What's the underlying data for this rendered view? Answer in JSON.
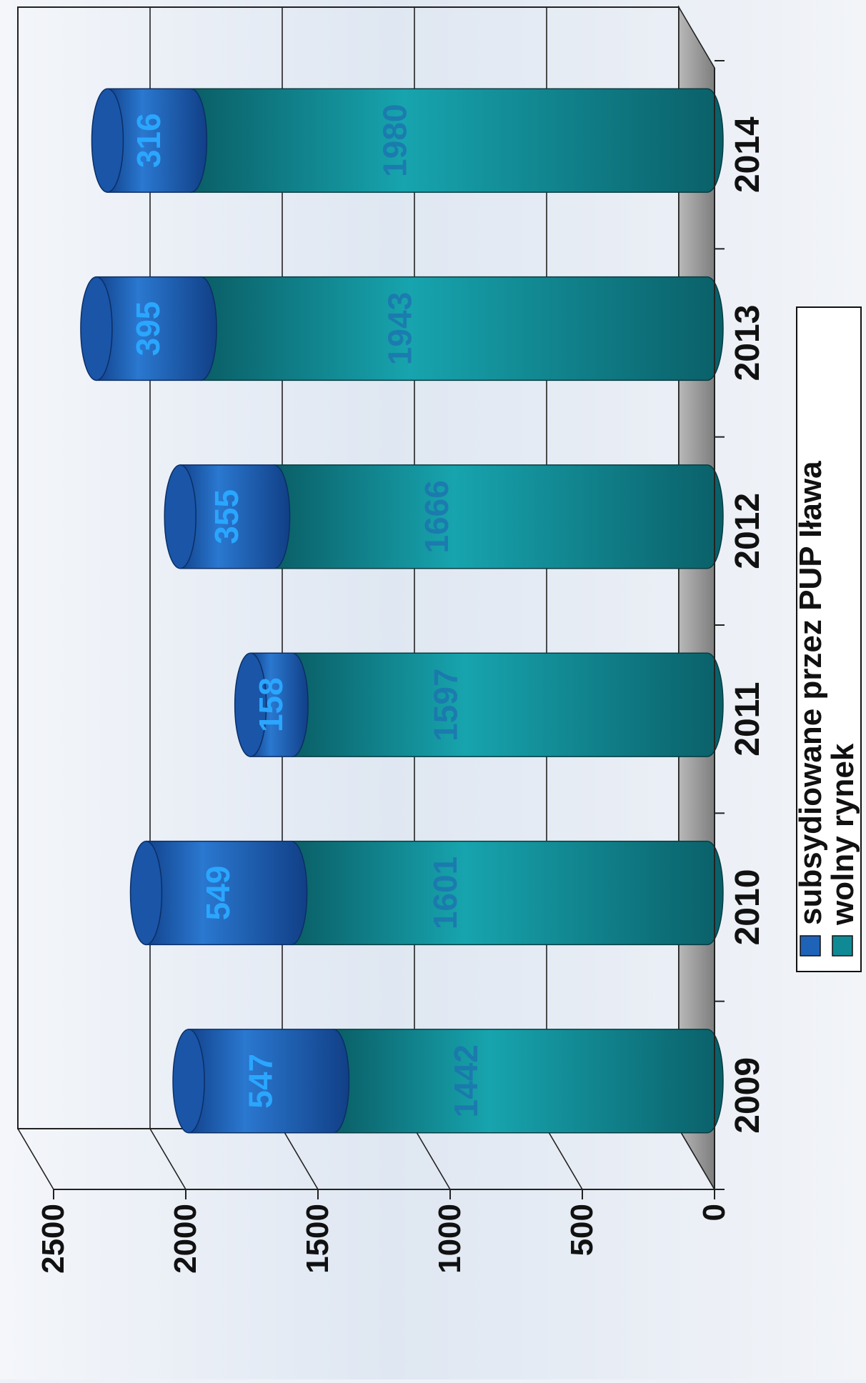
{
  "chart_data": {
    "type": "bar",
    "stacked": true,
    "orientation": "vertical",
    "style": "3d-cylinder",
    "categories": [
      "2009",
      "2010",
      "2011",
      "2012",
      "2013",
      "2014"
    ],
    "series": [
      {
        "name": "subsydiowane przez PUP Iława",
        "values": [
          547,
          549,
          158,
          355,
          395,
          316
        ],
        "color": "#1f63b8"
      },
      {
        "name": "wolny rynek",
        "values": [
          1442,
          1601,
          1597,
          1666,
          1943,
          1980
        ],
        "color": "#0f8a94"
      }
    ],
    "ylim": [
      0,
      2500
    ],
    "yticks": [
      "0",
      "500",
      "1000",
      "1500",
      "2000",
      "2500"
    ],
    "grid": true,
    "legend_position": "bottom",
    "colors": {
      "floor": "#9a9a9a",
      "background": "#eef2f8",
      "grid": "#222222"
    }
  }
}
